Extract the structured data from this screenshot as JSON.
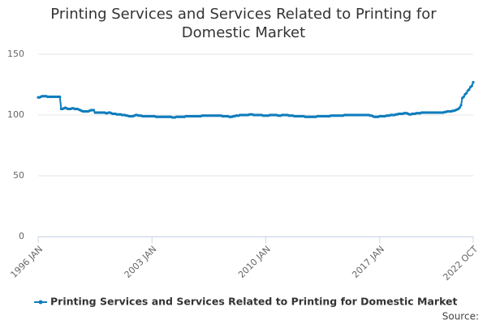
{
  "chart_data": {
    "type": "line",
    "title": "Printing Services and Services Related to Printing for Domestic Market",
    "source": "Source:",
    "ylim": [
      0,
      150
    ],
    "yticks": [
      0,
      50,
      100,
      150
    ],
    "grid": true,
    "legend": "bottom",
    "categories": [
      "1996 JAN",
      null,
      null,
      null,
      null,
      null,
      null,
      null,
      null,
      null,
      null,
      null,
      null,
      null,
      null,
      null,
      null,
      null,
      null,
      null,
      null,
      null,
      null,
      null,
      null,
      null,
      null,
      null,
      null,
      null,
      null,
      null,
      null,
      null,
      null,
      null,
      null,
      null,
      null,
      null,
      null,
      null,
      null,
      null,
      null,
      null,
      null,
      null,
      null,
      null,
      null,
      null,
      null,
      null,
      null,
      null,
      null,
      null,
      null,
      null,
      null,
      null,
      null,
      null,
      null,
      null,
      null,
      null,
      null,
      null,
      null,
      null,
      null,
      null,
      null,
      null,
      null,
      null,
      null,
      null,
      null,
      null,
      null,
      null,
      "2003 JAN",
      null,
      null,
      null,
      null,
      null,
      null,
      null,
      null,
      null,
      null,
      null,
      null,
      null,
      null,
      null,
      null,
      null,
      null,
      null,
      null,
      null,
      null,
      null,
      null,
      null,
      null,
      null,
      null,
      null,
      null,
      null,
      null,
      null,
      null,
      null,
      null,
      null,
      null,
      null,
      null,
      null,
      null,
      null,
      null,
      null,
      null,
      null,
      null,
      null,
      null,
      null,
      null,
      null,
      null,
      null,
      null,
      null,
      null,
      null,
      null,
      null,
      null,
      null,
      null,
      null,
      null,
      null,
      null,
      null,
      null,
      null,
      null,
      null,
      null,
      null,
      null,
      null,
      null,
      null,
      null,
      null,
      null,
      null,
      "2010 JAN",
      null,
      null,
      null,
      null,
      null,
      null,
      null,
      null,
      null,
      null,
      null,
      null,
      null,
      null,
      null,
      null,
      null,
      null,
      null,
      null,
      null,
      null,
      null,
      null,
      null,
      null,
      null,
      null,
      null,
      null,
      null,
      null,
      null,
      null,
      null,
      null,
      null,
      null,
      null,
      null,
      null,
      null,
      null,
      null,
      null,
      null,
      null,
      null,
      null,
      null,
      null,
      null,
      null,
      null,
      null,
      null,
      null,
      null,
      null,
      null,
      null,
      null,
      null,
      null,
      null,
      null,
      null,
      null,
      null,
      null,
      null,
      null,
      null,
      null,
      null,
      null,
      null,
      null,
      null,
      null,
      null,
      null,
      null,
      "2017 JAN",
      null,
      null,
      null,
      null,
      null,
      null,
      null,
      null,
      null,
      null,
      null,
      null,
      null,
      null,
      null,
      null,
      null,
      null,
      null,
      null,
      null,
      null,
      null,
      null,
      null,
      null,
      null,
      null,
      null,
      null,
      null,
      null,
      null,
      null,
      null,
      null,
      null,
      null,
      null,
      null,
      null,
      null,
      null,
      null,
      null,
      null,
      null,
      null,
      null,
      null,
      null,
      null,
      null,
      null,
      null,
      null,
      null,
      null,
      null,
      null,
      null,
      null,
      null,
      null,
      null,
      null,
      null,
      null,
      "2022 OCT"
    ],
    "series": [
      {
        "name": "Printing Services and Services Related to Printing for Domestic Market",
        "color": "#0f7dbd",
        "values": [
          114.5,
          114.5,
          115,
          115.5,
          115.5,
          115.5,
          115.5,
          115,
          115,
          115,
          115,
          115,
          115,
          115,
          115,
          115,
          115,
          105,
          105,
          105.5,
          106,
          105.5,
          105,
          105,
          105,
          105.5,
          105.5,
          105,
          105,
          105,
          104.5,
          104,
          103.5,
          103,
          103,
          103,
          103,
          103,
          103.5,
          104,
          104,
          104,
          102,
          102,
          102,
          102,
          102,
          102,
          102,
          102,
          101.5,
          101.5,
          102,
          102,
          101.5,
          101,
          101,
          101,
          100.5,
          100.5,
          100.5,
          100.5,
          100,
          100,
          100,
          99.5,
          99.5,
          99,
          99,
          99,
          99,
          99.5,
          100,
          100,
          99.5,
          99.5,
          99.5,
          99,
          99,
          99,
          99,
          99,
          99,
          99,
          99,
          99,
          99,
          98.5,
          98.5,
          98.5,
          98.5,
          98.5,
          98.5,
          98.5,
          98.5,
          98.5,
          98.5,
          98.5,
          98.5,
          98,
          98,
          98,
          98.5,
          98.5,
          98.5,
          98.5,
          98.5,
          98.5,
          98.5,
          99,
          99,
          99,
          99,
          99,
          99,
          99,
          99,
          99,
          99,
          99,
          99,
          99.5,
          99.5,
          99.5,
          99.5,
          99.5,
          99.5,
          99.5,
          99.5,
          99.5,
          99.5,
          99.5,
          99.5,
          99.5,
          99.5,
          99.5,
          99,
          99,
          99,
          99,
          99,
          98.5,
          98.5,
          98.5,
          99,
          99,
          99.5,
          99.5,
          99.5,
          100,
          100,
          100,
          100,
          100,
          100,
          100,
          100.5,
          100.5,
          100.5,
          100,
          100,
          100,
          100,
          100,
          100,
          100,
          99.5,
          99.5,
          99.5,
          99.5,
          99.5,
          100,
          100,
          100,
          100,
          100,
          100,
          99.5,
          99.5,
          99.5,
          100,
          100,
          100,
          100,
          100,
          99.5,
          99.5,
          99.5,
          99.5,
          99,
          99,
          99,
          99,
          99,
          99,
          99,
          99,
          98.5,
          98.5,
          98.5,
          98.5,
          98.5,
          98.5,
          98.5,
          98.5,
          98.5,
          99,
          99,
          99,
          99,
          99,
          99,
          99,
          99,
          99,
          99,
          99.5,
          99.5,
          99.5,
          99.5,
          99.5,
          99.5,
          99.5,
          99.5,
          99.5,
          99.5,
          100,
          100,
          100,
          100,
          100,
          100,
          100,
          100,
          100,
          100,
          100,
          100,
          100,
          100,
          100,
          100,
          100,
          100,
          100,
          99.5,
          99.5,
          99,
          98.5,
          98.5,
          98.5,
          98.5,
          99,
          99,
          99,
          99,
          99,
          99.5,
          99.5,
          99.5,
          100,
          100,
          100,
          100,
          100.5,
          100.5,
          101,
          101,
          101,
          101,
          101.5,
          101.5,
          101.5,
          101,
          100.5,
          100.5,
          101,
          101,
          101,
          101.5,
          101.5,
          101.5,
          101.5,
          102,
          102,
          102,
          102,
          102,
          102,
          102,
          102,
          102,
          102,
          102,
          102,
          102,
          102,
          102,
          102,
          102,
          102.5,
          102.5,
          103,
          103,
          103,
          103,
          103.5,
          103.5,
          104,
          104.5,
          105,
          106,
          108,
          114,
          115,
          117,
          118,
          120,
          121,
          123,
          124,
          127
        ]
      }
    ]
  }
}
